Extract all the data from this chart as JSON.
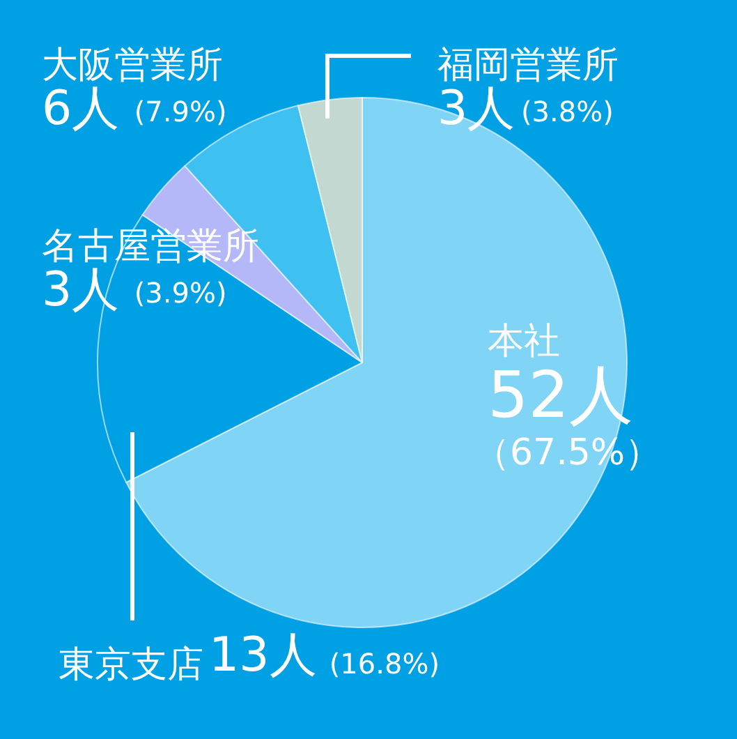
{
  "chart_data": {
    "type": "pie",
    "categories": [
      "本社",
      "東京支店",
      "名古屋営業所",
      "大阪営業所",
      "福岡営業所"
    ],
    "values": [
      52,
      13,
      3,
      6,
      3
    ],
    "value_labels": [
      "52人（67.5%）",
      "13人 (16.8%)",
      "3人 (3.9%)",
      "6人 (7.9%)",
      "3人(3.8%)"
    ],
    "colors": [
      "#80d4f6",
      "#00a0e4",
      "#b4b8f8",
      "#3ec0f0",
      "#c4d8d2"
    ]
  }
}
